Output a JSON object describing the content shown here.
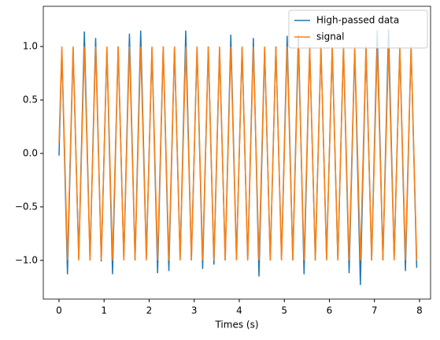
{
  "chart_data": {
    "type": "line",
    "xlabel": "Times (s)",
    "x": [
      0,
      0.0625,
      0.1875,
      0.3125,
      0.4375,
      0.5625,
      0.6875,
      0.8125,
      0.9375,
      1.0625,
      1.1875,
      1.3125,
      1.4375,
      1.5625,
      1.6875,
      1.8125,
      1.9375,
      2.0625,
      2.1875,
      2.3125,
      2.4375,
      2.5625,
      2.6875,
      2.8125,
      2.9375,
      3.0625,
      3.1875,
      3.3125,
      3.4375,
      3.5625,
      3.6875,
      3.8125,
      3.9375,
      4.0625,
      4.1875,
      4.3125,
      4.4375,
      4.5625,
      4.6875,
      4.8125,
      4.9375,
      5.0625,
      5.1875,
      5.3125,
      5.4375,
      5.5625,
      5.6875,
      5.8125,
      5.9375,
      6.0625,
      6.1875,
      6.3125,
      6.4375,
      6.5625,
      6.6875,
      6.8125,
      6.9375,
      7.0625,
      7.1875,
      7.3125,
      7.4375,
      7.5625,
      7.6875,
      7.8125,
      7.9375
    ],
    "series": [
      {
        "name": "High-passed data",
        "color": "#1f77b4",
        "values": [
          -0.02,
          0.97,
          -1.13,
          0.99,
          -0.98,
          1.14,
          -1.0,
          1.08,
          -1.01,
          0.98,
          -1.13,
          1.0,
          -0.99,
          1.12,
          -1.0,
          1.15,
          -0.98,
          0.98,
          -1.12,
          1.0,
          -1.1,
          0.99,
          -0.99,
          1.15,
          -1.0,
          0.99,
          -1.08,
          1.0,
          -1.04,
          0.98,
          -1.0,
          1.11,
          -0.99,
          0.99,
          -1.0,
          1.08,
          -1.15,
          0.98,
          -1.0,
          1.0,
          -0.99,
          1.1,
          -1.0,
          1.11,
          -1.13,
          0.99,
          -1.0,
          1.0,
          -0.98,
          0.99,
          -1.0,
          1.0,
          -1.12,
          0.98,
          -1.23,
          1.0,
          -1.0,
          1.15,
          -1.0,
          1.16,
          -0.98,
          0.99,
          -1.1,
          1.0,
          -1.07
        ]
      },
      {
        "name": "signal",
        "color": "#ff7f0e",
        "values": [
          0.1,
          1,
          -1,
          1,
          -1,
          1,
          -1,
          1,
          -1,
          1,
          -1,
          1,
          -1,
          1,
          -1,
          1,
          -1,
          1,
          -1,
          1,
          -1,
          1,
          -1,
          1,
          -1,
          1,
          -1,
          1,
          -1,
          1,
          -1,
          1,
          -1,
          1,
          -1,
          1,
          -1,
          1,
          -1,
          1,
          -1,
          1,
          -1,
          1,
          -1,
          1,
          -1,
          1,
          -1,
          1,
          -1,
          1,
          -1,
          1,
          -1,
          1,
          -1,
          1,
          -1,
          1,
          -1,
          1,
          -1,
          1,
          -1
        ]
      }
    ],
    "xlim": [
      -0.349,
      8.245
    ],
    "ylim": [
      -1.362,
      1.376
    ],
    "xticks": [
      0,
      1,
      2,
      3,
      4,
      5,
      6,
      7,
      8
    ],
    "yticks": [
      {
        "value": -1,
        "label": "−1.0"
      },
      {
        "value": -0.5,
        "label": "−0.5"
      },
      {
        "value": 0,
        "label": "0.0"
      },
      0.5,
      {
        "value": 1,
        "label": "1.0"
      }
    ],
    "legend": "upper right"
  }
}
